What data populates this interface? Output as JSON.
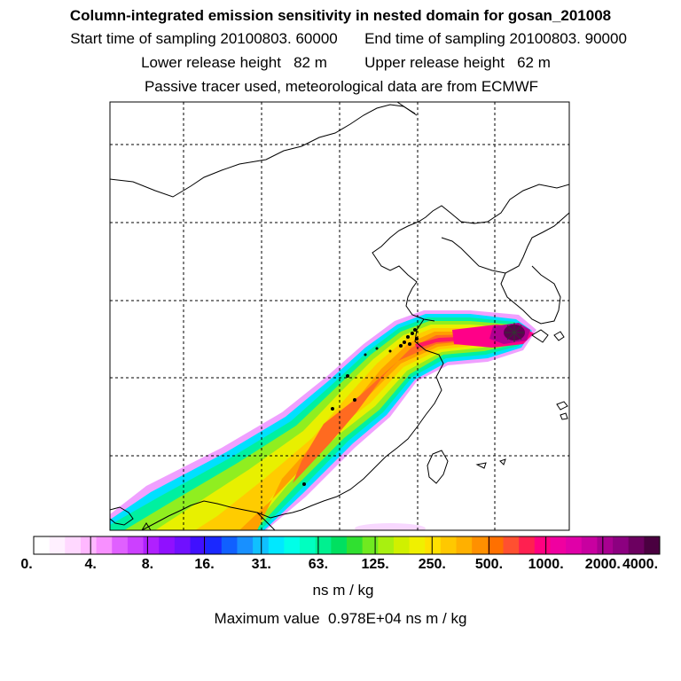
{
  "header": {
    "title": "Column-integrated emission sensitivity in nested domain for gosan_201008",
    "sampling_start": "Start time of sampling 20100803. 60000",
    "sampling_end": "End time of sampling 20100803. 90000",
    "release_lower": "Lower release height   82 m",
    "release_upper": "Upper release height   62 m",
    "tracer_note": "Passive tracer used, meteorological data are from ECMWF"
  },
  "colorbar": {
    "tick_labels": [
      "0.",
      "4.",
      "8.",
      "16.",
      "31.",
      "63.",
      "125.",
      "250.",
      "500.",
      "1000.",
      "2000.",
      "4000."
    ],
    "colors": [
      "#ffffff",
      "#fff0ff",
      "#ffd8ff",
      "#ffb8ff",
      "#f890ff",
      "#e060ff",
      "#cc40ff",
      "#b020ff",
      "#9010ff",
      "#7010ff",
      "#4010ff",
      "#1a28ff",
      "#1060ff",
      "#1890ff",
      "#10c0ff",
      "#00e8ff",
      "#00ffe8",
      "#00ffc0",
      "#00f090",
      "#00e060",
      "#30e030",
      "#70ea20",
      "#a8f010",
      "#d0f000",
      "#f0f000",
      "#ffe000",
      "#ffc800",
      "#ffb000",
      "#ff9000",
      "#ff7000",
      "#ff5030",
      "#ff2050",
      "#ff0080",
      "#f000a0",
      "#e000a8",
      "#c800a0",
      "#a80090",
      "#8c0080",
      "#6c0060",
      "#4a0040"
    ],
    "unit": "ns m / kg",
    "maximum": "Maximum value  0.978E+04 ns m / kg"
  },
  "colors": {
    "coast": "#000000",
    "grid": "#000000",
    "receptor": "#222222"
  }
}
